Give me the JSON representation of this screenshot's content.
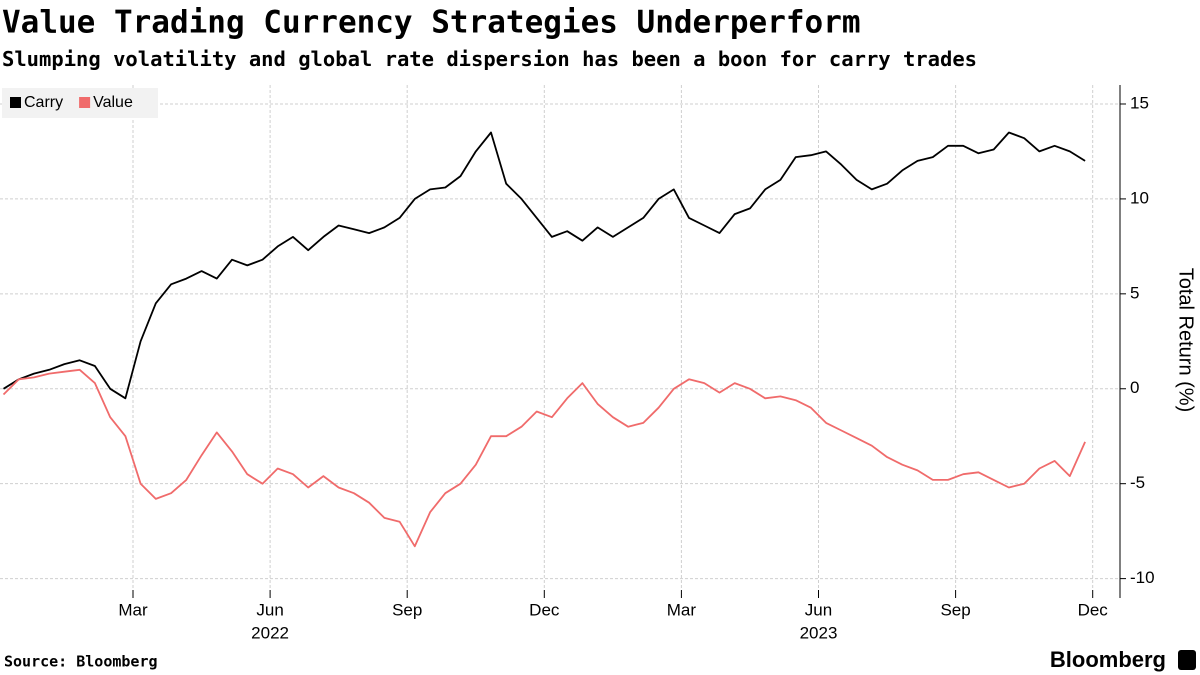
{
  "chart_data": {
    "type": "line",
    "title": "Value Trading Currency Strategies Underperform",
    "subtitle": "Slumping volatility and global rate dispersion has been a boon for carry trades",
    "y_axis_label": "Total Return (%)",
    "source": "Source: Bloomberg",
    "brand": "Bloomberg",
    "x": [
      "2021-12",
      "2021-12",
      "2021-12",
      "2022-01",
      "2022-01",
      "2022-01",
      "2022-02",
      "2022-02",
      "2022-02",
      "2022-03",
      "2022-03",
      "2022-03",
      "2022-04",
      "2022-04",
      "2022-04",
      "2022-05",
      "2022-05",
      "2022-05",
      "2022-06",
      "2022-06",
      "2022-06",
      "2022-07",
      "2022-07",
      "2022-07",
      "2022-08",
      "2022-08",
      "2022-08",
      "2022-09",
      "2022-09",
      "2022-09",
      "2022-10",
      "2022-10",
      "2022-10",
      "2022-11",
      "2022-11",
      "2022-11",
      "2022-12",
      "2022-12",
      "2022-12",
      "2023-01",
      "2023-01",
      "2023-01",
      "2023-02",
      "2023-02",
      "2023-02",
      "2023-03",
      "2023-03",
      "2023-03",
      "2023-04",
      "2023-04",
      "2023-04",
      "2023-05",
      "2023-05",
      "2023-05",
      "2023-06",
      "2023-06",
      "2023-06",
      "2023-07",
      "2023-07",
      "2023-07",
      "2023-08",
      "2023-08",
      "2023-08",
      "2023-09",
      "2023-09",
      "2023-09",
      "2023-10",
      "2023-10",
      "2023-10",
      "2023-11",
      "2023-11",
      "2023-11"
    ],
    "series": [
      {
        "name": "Carry",
        "color": "#000000",
        "values": [
          0,
          0.5,
          0.8,
          1.0,
          1.3,
          1.5,
          1.2,
          0,
          -0.5,
          2.5,
          4.5,
          5.5,
          5.8,
          6.2,
          5.8,
          6.8,
          6.5,
          6.8,
          7.5,
          8,
          7.3,
          8.0,
          8.6,
          8.4,
          8.2,
          8.5,
          9.0,
          10.0,
          10.5,
          10.6,
          11.2,
          12.5,
          13.5,
          10.8,
          10.0,
          9.0,
          8.0,
          8.3,
          7.8,
          8.5,
          8.0,
          8.5,
          9.0,
          10.0,
          10.5,
          9.0,
          8.6,
          8.2,
          9.2,
          9.5,
          10.5,
          11.0,
          12.2,
          12.3,
          12.5,
          11.8,
          11.0,
          10.5,
          10.8,
          11.5,
          12.0,
          12.2,
          12.8,
          12.8,
          12.4,
          12.6,
          13.5,
          13.2,
          12.5,
          12.8,
          12.5,
          12.0
        ]
      },
      {
        "name": "Value",
        "color": "#f06b6b",
        "values": [
          -0.3,
          0.5,
          0.6,
          0.8,
          0.9,
          1.0,
          0.3,
          -1.5,
          -2.5,
          -5.0,
          -5.8,
          -5.5,
          -4.8,
          -3.5,
          -2.3,
          -3.3,
          -4.5,
          -5.0,
          -4.2,
          -4.5,
          -5.2,
          -4.6,
          -5.2,
          -5.5,
          -6.0,
          -6.8,
          -7.0,
          -8.3,
          -6.5,
          -5.5,
          -5.0,
          -4.0,
          -2.5,
          -2.5,
          -2.0,
          -1.2,
          -1.5,
          -0.5,
          0.3,
          -0.8,
          -1.5,
          -2.0,
          -1.8,
          -1.0,
          0.0,
          0.5,
          0.3,
          -0.2,
          0.3,
          0.0,
          -0.5,
          -0.4,
          -0.6,
          -1.0,
          -1.8,
          -2.2,
          -2.6,
          -3.0,
          -3.6,
          -4.0,
          -4.3,
          -4.8,
          -4.8,
          -4.5,
          -4.4,
          -4.8,
          -5.2,
          -5.0,
          -4.2,
          -3.8,
          -4.6,
          -2.8
        ]
      }
    ],
    "xticks": [
      {
        "value": "2022-03",
        "label": "Mar"
      },
      {
        "value": "2022-06",
        "label": "Jun"
      },
      {
        "value": "2022-09",
        "label": "Sep"
      },
      {
        "value": "2022-12",
        "label": "Dec"
      },
      {
        "value": "2023-03",
        "label": "Mar"
      },
      {
        "value": "2023-06",
        "label": "Jun"
      },
      {
        "value": "2023-09",
        "label": "Sep"
      },
      {
        "value": "2023-12",
        "label": "Dec"
      }
    ],
    "x_year_labels": [
      {
        "value": "2022-06",
        "label": "2022"
      },
      {
        "value": "2023-06",
        "label": "2023"
      }
    ],
    "ylim": [
      -10.6,
      16
    ],
    "yticks": [
      -10,
      -5,
      0,
      5,
      10,
      15
    ],
    "grid": true,
    "legend": "top-left"
  }
}
